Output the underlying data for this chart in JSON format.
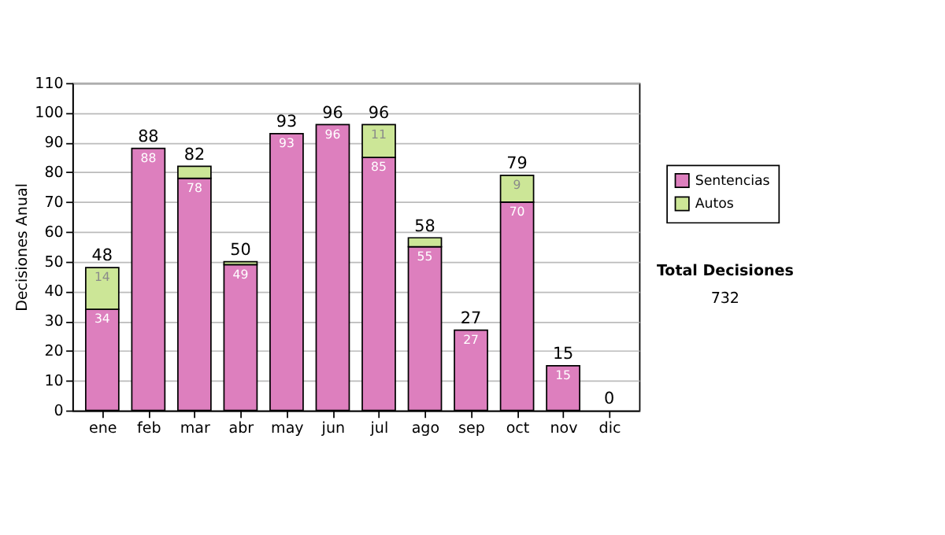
{
  "chart_data": {
    "type": "bar",
    "stacked": true,
    "ylabel": "Decisiones Anual",
    "categories": [
      "ene",
      "feb",
      "mar",
      "abr",
      "may",
      "jun",
      "jul",
      "ago",
      "sep",
      "oct",
      "nov",
      "dic"
    ],
    "series": [
      {
        "name": "Sentencias",
        "color": "#dd7fbe",
        "values": [
          34,
          88,
          78,
          49,
          93,
          96,
          85,
          55,
          27,
          70,
          15,
          0
        ],
        "value_labels": [
          "34",
          "88",
          "78",
          "49",
          "93",
          "96",
          "85",
          "55",
          "27",
          "70",
          "15",
          null
        ]
      },
      {
        "name": "Autos",
        "color": "#cce697",
        "values": [
          14,
          0,
          4,
          1,
          0,
          0,
          11,
          3,
          0,
          9,
          0,
          0
        ],
        "value_labels": [
          "14",
          null,
          null,
          null,
          null,
          null,
          "11",
          null,
          null,
          "9",
          null,
          null
        ]
      }
    ],
    "totals": [
      "48",
      "88",
      "82",
      "50",
      "93",
      "96",
      "96",
      "58",
      "27",
      "79",
      "15",
      "0"
    ],
    "ylim": [
      0,
      110
    ],
    "yticks": [
      0,
      10,
      20,
      30,
      40,
      50,
      60,
      70,
      80,
      90,
      100,
      110
    ],
    "grid": "y",
    "legend": "right",
    "annotations": [
      "Total Decisiones",
      "732"
    ]
  }
}
